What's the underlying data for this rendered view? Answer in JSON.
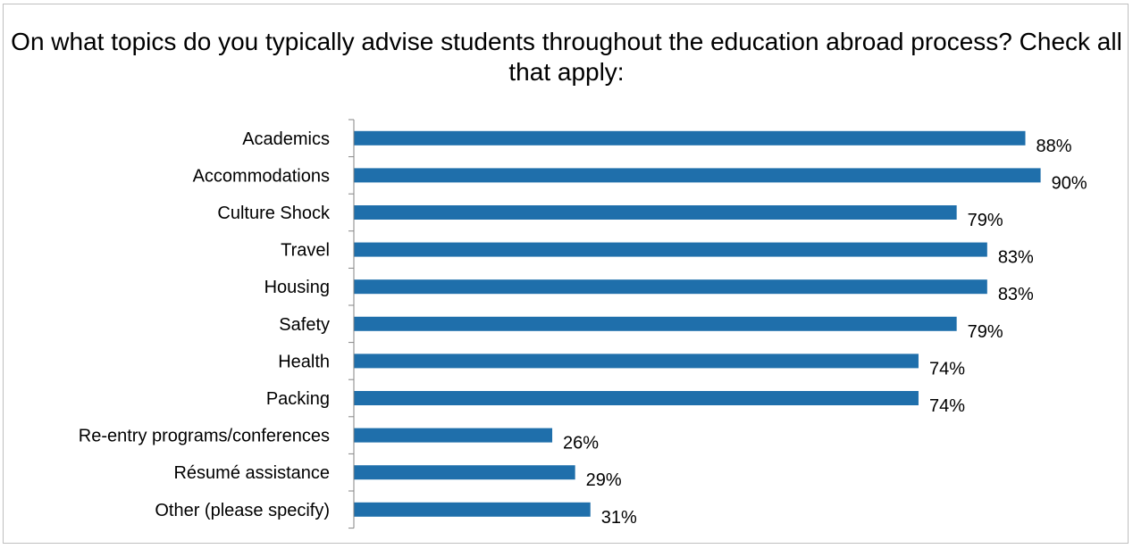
{
  "chart_data": {
    "type": "bar",
    "orientation": "horizontal",
    "title": "On what topics do you typically advise students throughout the education abroad process? Check all that apply:",
    "categories": [
      "Academics",
      "Accommodations",
      "Culture Shock",
      "Travel",
      "Housing",
      "Safety",
      "Health",
      "Packing",
      "Re-entry programs/conferences",
      "Résumé assistance",
      "Other (please specify)"
    ],
    "values": [
      88,
      90,
      79,
      83,
      83,
      79,
      74,
      74,
      26,
      29,
      31
    ],
    "value_labels": [
      "88%",
      "90%",
      "79%",
      "83%",
      "83%",
      "79%",
      "74%",
      "74%",
      "26%",
      "29%",
      "31%"
    ],
    "xlim": [
      0,
      100
    ],
    "bar_color": "#1f6fab",
    "grid": false,
    "legend": "none"
  }
}
